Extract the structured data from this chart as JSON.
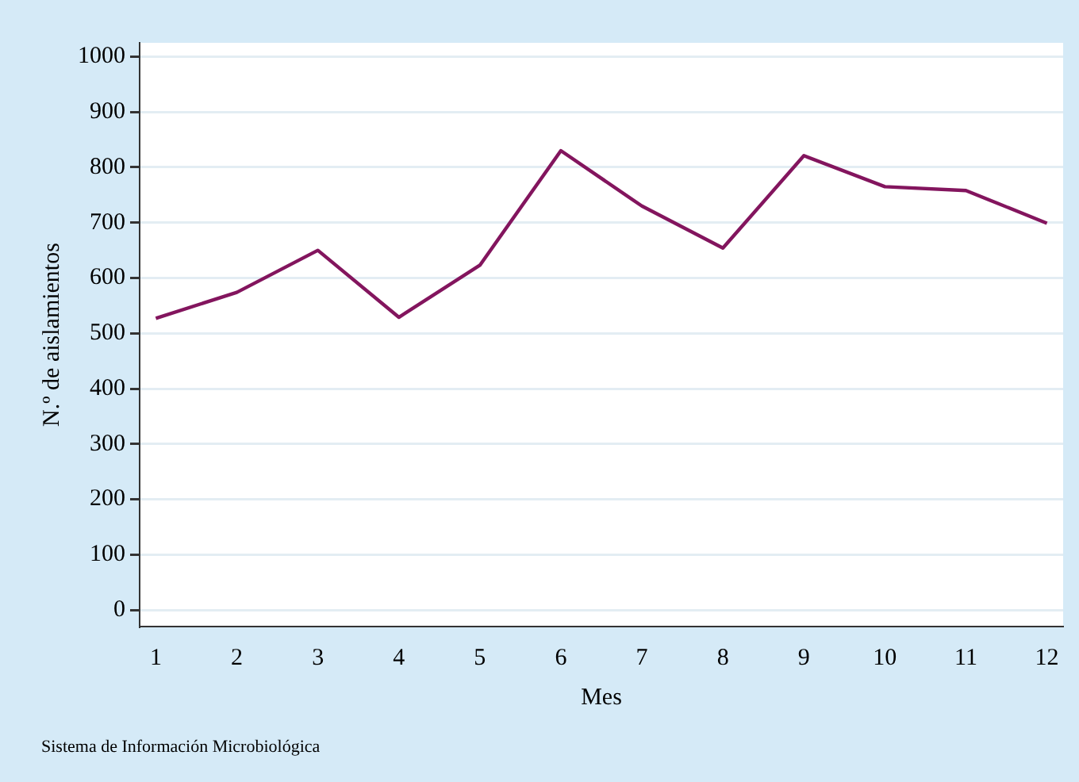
{
  "chart_data": {
    "type": "line",
    "xlabel": "Mes",
    "ylabel": "N.º de aislamientos",
    "x": [
      1,
      2,
      3,
      4,
      5,
      6,
      7,
      8,
      9,
      10,
      11,
      12
    ],
    "series": [
      {
        "color": "#83155e",
        "values": [
          527,
          574,
          650,
          529,
          623,
          830,
          730,
          654,
          821,
          765,
          758,
          699
        ]
      }
    ],
    "xlim": [
      0.8,
      12.2
    ],
    "xticks": [
      1,
      2,
      3,
      4,
      5,
      6,
      7,
      8,
      9,
      10,
      11,
      12
    ],
    "ylim": [
      -30,
      1025
    ],
    "yticks": [
      0,
      100,
      200,
      300,
      400,
      500,
      600,
      700,
      800,
      900,
      1000
    ],
    "grid": "y",
    "legend": false,
    "marker": "none",
    "line_style": "solid",
    "annotations": [
      "Sistema de Información Microbiológica"
    ]
  }
}
